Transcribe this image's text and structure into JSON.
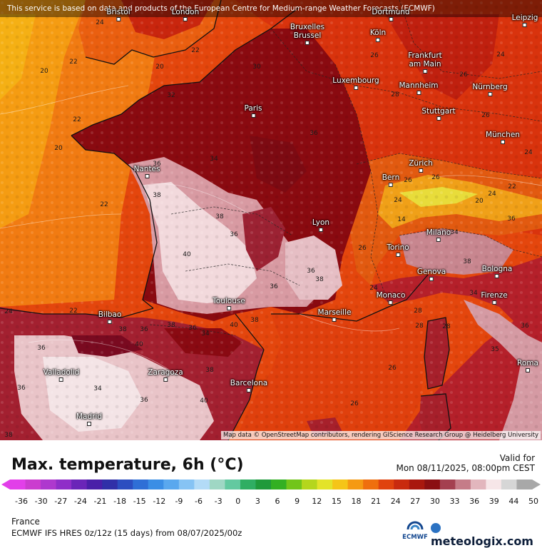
{
  "notice": "This service is based on data and products of the European Centre for Medium-range Weather Forecasts (ECMWF)",
  "attribution": "Map data © OpenStreetMap contributors, rendering GIScience Research Group @ Heidelberg University",
  "cities": {
    "bristol": "Bristol",
    "london": "London",
    "dortmund": "Dortmund",
    "leipzig": "Leipzig",
    "bruxelles": "Bruxelles\nBrussel",
    "koln": "Köln",
    "frankfurt": "Frankfurt\nam Main",
    "luxembourg": "Luxembourg",
    "mannheim": "Mannheim",
    "nurnberg": "Nürnberg",
    "paris": "Paris",
    "stuttgart": "Stuttgart",
    "munchen": "München",
    "nantes": "Nantes",
    "zurich": "Zürich",
    "bern": "Bern",
    "lyon": "Lyon",
    "milano": "Milano",
    "torino": "Torino",
    "genova": "Genova",
    "bologna": "Bologna",
    "monaco": "Monaco",
    "firenze": "Firenze",
    "toulouse": "Toulouse",
    "marseille": "Marseille",
    "bilbao": "Bilbao",
    "valladolid": "Valladolid",
    "zaragoza": "Zaragoza",
    "barcelona": "Barcelona",
    "madrid": "Madrid",
    "roma": "Roma"
  },
  "temp_labels": {
    "t24a": "24",
    "t22a": "22",
    "t20a": "20",
    "t22b": "22",
    "t20b": "20",
    "t22c": "22",
    "t32a": "32",
    "t30a": "30",
    "t26a": "26",
    "t24b": "24",
    "t26b": "26",
    "t28a": "28",
    "t26c": "26",
    "t24c": "24",
    "t20c": "20",
    "t36a": "36",
    "t34a": "34",
    "t36b": "36",
    "t38a": "38",
    "t38b": "38",
    "t36c": "36",
    "t40a": "40",
    "t36d": "36",
    "t38c": "38",
    "t40b": "40",
    "t38d": "38",
    "t36e": "36",
    "t24d": "24",
    "t26d": "26",
    "t22d": "22",
    "t22e": "22",
    "t34b": "34",
    "t38e": "38",
    "t36f": "36",
    "t40c": "40",
    "t38f": "38",
    "t36g": "36",
    "t34c": "34",
    "t36h": "36",
    "t38g": "38",
    "t40d": "40",
    "t28b": "28",
    "t26e": "26",
    "t26f": "26",
    "t28c": "28",
    "t34d": "34",
    "t36i": "36",
    "t38h": "38",
    "t36j": "36",
    "t34e": "34",
    "t24e": "24",
    "t26g": "26",
    "t22f": "22",
    "t20d": "20",
    "t14": "14",
    "t24f": "24",
    "t26h": "26",
    "t36k": "36",
    "t35": "35",
    "t38i": "38",
    "t36l": "36",
    "t24g": "24",
    "t28d": "28"
  },
  "footer": {
    "title": "Max. temperature, 6h (°C)",
    "valid_label": "Valid for",
    "valid_date": "Mon 08/11/2025, 08:00pm CEST",
    "region": "France",
    "model": "ECMWF IFS HRES 0z/12z (15 days) from  08/07/2025/00z",
    "ecmwf": "ECMWF",
    "brand": "meteologix.com"
  },
  "scale": {
    "ticks": [
      "-36",
      "-30",
      "-27",
      "-24",
      "-21",
      "-18",
      "-15",
      "-12",
      "-9",
      "-6",
      "-3",
      "0",
      "3",
      "6",
      "9",
      "12",
      "15",
      "18",
      "21",
      "24",
      "27",
      "30",
      "33",
      "36",
      "39",
      "44",
      "50"
    ],
    "colors": [
      "#e23fe9",
      "#cb3ccf",
      "#ae38ce",
      "#8f2ec8",
      "#6a25b8",
      "#4a1fa8",
      "#3030a8",
      "#2c4ec0",
      "#2f6fd6",
      "#3b8ee5",
      "#5aa8ee",
      "#86c3f4",
      "#b3dbf7",
      "#9fd7c4",
      "#63c9a0",
      "#2fae63",
      "#1f9a3b",
      "#33b023",
      "#72c51a",
      "#b5d61d",
      "#e3e32a",
      "#f5c518",
      "#f59a12",
      "#ef6f0e",
      "#e0430d",
      "#c92a0e",
      "#a9180f",
      "#8b0f12",
      "#a44050",
      "#c57c88",
      "#e2b6bd",
      "#f6e6e8",
      "#d6d6d6",
      "#a8a8a8"
    ]
  },
  "colors": {
    "sea_orange": "#f06a12",
    "hot_dark": "#8c0b10",
    "hot_pale": "#f0d3d6"
  }
}
